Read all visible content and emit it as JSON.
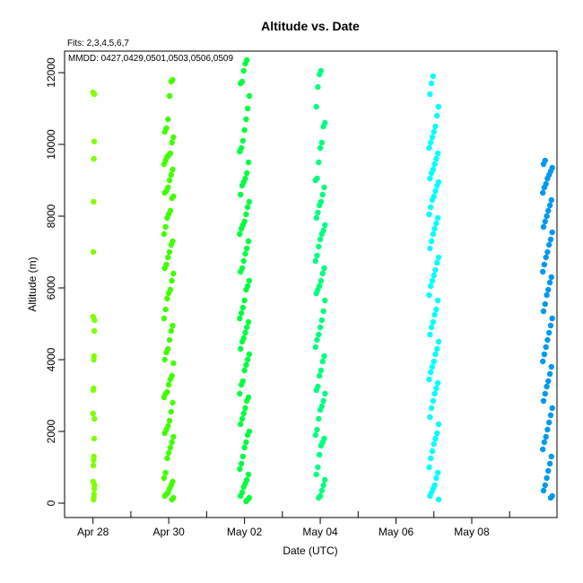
{
  "chart_data": {
    "type": "scatter",
    "title": "Altitude  vs. Date",
    "subtitle_lines": [
      "Fits: 2,3,4,5,6,7",
      "MMDD: 0427,0429,0501,0503,0506,0509"
    ],
    "xlabel": "Date (UTC)",
    "ylabel": "Altitude (m)",
    "xlim": [
      "2025-04-27T06:00",
      "2025-05-10T06:00"
    ],
    "ylim": [
      -400,
      12600
    ],
    "x_ticks": [
      {
        "date": "2025-04-28",
        "label": "Apr 28"
      },
      {
        "date": "2025-04-30",
        "label": "Apr 30"
      },
      {
        "date": "2025-05-02",
        "label": "May 02"
      },
      {
        "date": "2025-05-04",
        "label": "May 04"
      },
      {
        "date": "2025-05-06",
        "label": "May 06"
      },
      {
        "date": "2025-05-08",
        "label": "May 08"
      }
    ],
    "x_minor_ticks": [
      "2025-04-29",
      "2025-05-01",
      "2025-05-03",
      "2025-05-05",
      "2025-05-07",
      "2025-05-09"
    ],
    "y_ticks": [
      0,
      2000,
      4000,
      6000,
      8000,
      10000,
      12000
    ],
    "y_tick_labels": [
      "0",
      "2000",
      "4000",
      "6000",
      "8000",
      "10000",
      "12000"
    ],
    "grid": false,
    "series": [
      {
        "color": "#80ff00",
        "x_range": [
          "2025-04-28T00:00",
          "2025-04-28T01:00"
        ],
        "y": [
          11450,
          11400,
          10080,
          9600,
          8400,
          7000,
          5200,
          5100,
          4800,
          4100,
          4000,
          3200,
          3150,
          2500,
          2350,
          1800,
          1300,
          1200,
          1050,
          600,
          500,
          400,
          250,
          150,
          100
        ]
      },
      {
        "color": "#40ff00",
        "x_range": [
          "2025-04-29T21:00",
          "2025-04-30T03:00"
        ],
        "y": [
          11800,
          11750,
          11350,
          10700,
          10450,
          10350,
          10200,
          10050,
          9750,
          9700,
          9650,
          9550,
          9450,
          9300,
          9150,
          9000,
          8800,
          8700,
          8650,
          8550,
          8500,
          8150,
          8050,
          7950,
          7700,
          7500,
          7300,
          7200,
          7000,
          6850,
          6650,
          6550,
          6400,
          6200,
          5950,
          5850,
          5700,
          5400,
          5150,
          4950,
          4800,
          4550,
          4300,
          4200,
          4000,
          3900,
          3550,
          3450,
          3300,
          3100,
          3050,
          2950,
          2800,
          2550,
          2300,
          2150,
          2050,
          1950,
          1850,
          1700,
          1550,
          1400,
          1250,
          850,
          700,
          600,
          500,
          400,
          300,
          250,
          200,
          150,
          100
        ]
      },
      {
        "color": "#00ff40",
        "x_range": [
          "2025-05-01T21:00",
          "2025-05-02T03:00"
        ],
        "y": [
          12350,
          12250,
          12050,
          11750,
          11700,
          11350,
          11000,
          10700,
          10400,
          10100,
          9900,
          9800,
          9500,
          9200,
          9050,
          8950,
          8850,
          8600,
          8400,
          8250,
          8050,
          7850,
          7750,
          7650,
          7500,
          7300,
          7100,
          6950,
          6750,
          6550,
          6450,
          6200,
          6050,
          5950,
          5650,
          5450,
          5300,
          5150,
          5050,
          4900,
          4750,
          4600,
          4500,
          4300,
          4150,
          4000,
          3850,
          3700,
          3400,
          3300,
          3050,
          2950,
          2850,
          2650,
          2500,
          2350,
          2200,
          2000,
          1900,
          1700,
          1550,
          1300,
          1100,
          950,
          800,
          650,
          550,
          450,
          300,
          200,
          150,
          100,
          50
        ]
      },
      {
        "color": "#00ff80",
        "x_range": [
          "2025-05-03T21:00",
          "2025-05-04T03:00"
        ],
        "y": [
          12050,
          11950,
          11600,
          11050,
          10600,
          10500,
          10050,
          9900,
          9500,
          9050,
          9000,
          8800,
          8600,
          8400,
          8300,
          8100,
          7950,
          7750,
          7600,
          7500,
          7350,
          7150,
          6900,
          6750,
          6550,
          6400,
          6200,
          6050,
          5950,
          5850,
          5650,
          5350,
          5100,
          4900,
          4700,
          4550,
          4350,
          4100,
          3950,
          3700,
          3550,
          3250,
          3150,
          3050,
          2850,
          2700,
          2600,
          2350,
          2050,
          1900,
          1800,
          1700,
          1600,
          1350,
          1000,
          800,
          650,
          500,
          350,
          200,
          150
        ]
      },
      {
        "color": "#00ffff",
        "x_range": [
          "2025-05-06T21:00",
          "2025-05-07T03:00"
        ],
        "y": [
          11900,
          11700,
          11400,
          11050,
          10800,
          10500,
          10350,
          10200,
          10050,
          9900,
          9750,
          9600,
          9450,
          9300,
          9200,
          9050,
          8950,
          8850,
          8700,
          8550,
          8450,
          8250,
          8050,
          7950,
          7800,
          7650,
          7500,
          7300,
          7100,
          6850,
          6700,
          6500,
          6350,
          6200,
          6050,
          5800,
          5650,
          5400,
          5250,
          5050,
          4900,
          4700,
          4500,
          4300,
          4150,
          3950,
          3800,
          3650,
          3450,
          3350,
          3200,
          3050,
          2850,
          2650,
          2400,
          2200,
          1950,
          1800,
          1650,
          1450,
          1250,
          1000,
          850,
          700,
          500,
          400,
          300,
          200,
          100
        ]
      },
      {
        "color": "#0099ee",
        "x_range": [
          "2025-05-09T21:00",
          "2025-05-10T03:00"
        ],
        "y": [
          9550,
          9450,
          9350,
          9250,
          9150,
          9050,
          8900,
          8800,
          8650,
          8450,
          8300,
          8150,
          8000,
          7850,
          7700,
          7550,
          7350,
          7200,
          7000,
          6850,
          6650,
          6450,
          6300,
          6150,
          5950,
          5800,
          5550,
          5350,
          5150,
          4950,
          4750,
          4550,
          4350,
          4150,
          3950,
          3800,
          3600,
          3400,
          3250,
          3050,
          2850,
          2650,
          2450,
          2250,
          2050,
          1850,
          1700,
          1500,
          1300,
          1100,
          900,
          700,
          500,
          350,
          200,
          150
        ]
      }
    ]
  }
}
